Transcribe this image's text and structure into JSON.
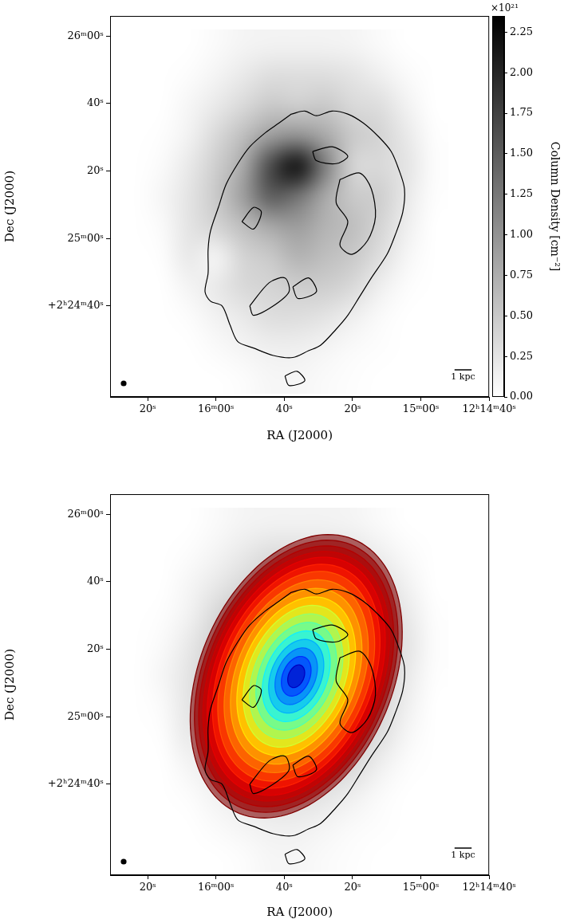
{
  "chart_data": [
    {
      "type": "image",
      "x_label": "RA (J2000)",
      "y_label": "Dec (J2000)",
      "xlim": [
        151,
        40
      ],
      "ylim": [
        13,
        126
      ],
      "xticks": [
        {
          "value": 140,
          "label": "20ˢ"
        },
        {
          "value": 120,
          "label": "16ᵐ00ˢ"
        },
        {
          "value": 100,
          "label": "40ˢ"
        },
        {
          "value": 80,
          "label": "20ˢ"
        },
        {
          "value": 60,
          "label": "15ᵐ00ˢ"
        },
        {
          "value": 40,
          "label": "12ʰ14ᵐ40ˢ"
        }
      ],
      "yticks": [
        {
          "value": 40,
          "label": "+2ʰ24ᵐ40ˢ"
        },
        {
          "value": 60,
          "label": "25ᵐ00ˢ"
        },
        {
          "value": 80,
          "label": "20ˢ"
        },
        {
          "value": 100,
          "label": "40ˢ"
        },
        {
          "value": 120,
          "label": "26ᵐ00ˢ"
        }
      ],
      "grid": false,
      "image": {
        "x": [
          144,
          136,
          128,
          120,
          112,
          104,
          96,
          88,
          80,
          72,
          64,
          56
        ],
        "y": [
          117.5,
          108.5,
          99.5,
          90.5,
          81.5,
          72.5,
          63.5,
          54.5,
          45.5,
          36.5,
          27.5,
          18.5
        ],
        "values": [
          [
            0,
            0,
            0,
            0.05,
            0.1,
            0.12,
            0.12,
            0.12,
            0.1,
            0.05,
            0,
            0
          ],
          [
            0,
            0,
            0.03,
            0.1,
            0.2,
            0.3,
            0.3,
            0.3,
            0.25,
            0.15,
            0.05,
            0
          ],
          [
            0,
            0,
            0.08,
            0.2,
            0.35,
            0.5,
            0.45,
            0.5,
            0.35,
            0.3,
            0.12,
            0
          ],
          [
            0,
            0.02,
            0.12,
            0.35,
            0.6,
            0.9,
            1.0,
            0.8,
            0.5,
            0.4,
            0.2,
            0.02
          ],
          [
            0,
            0.05,
            0.2,
            0.45,
            0.8,
            1.7,
            2.2,
            1.2,
            0.4,
            0.35,
            0.25,
            0.03
          ],
          [
            0,
            0.08,
            0.25,
            0.5,
            0.9,
            1.5,
            1.3,
            0.8,
            0.5,
            0.45,
            0.2,
            0.02
          ],
          [
            0,
            0.05,
            0.25,
            0.4,
            0.6,
            0.8,
            0.9,
            0.7,
            0.6,
            0.4,
            0.15,
            0
          ],
          [
            0,
            0.02,
            0.2,
            0.1,
            0.4,
            0.5,
            0.7,
            0.6,
            0.5,
            0.3,
            0.08,
            0
          ],
          [
            0,
            0,
            0.1,
            0.2,
            0.35,
            0.4,
            0.45,
            0.45,
            0.35,
            0.15,
            0.03,
            0
          ],
          [
            0,
            0,
            0.03,
            0.12,
            0.2,
            0.3,
            0.3,
            0.25,
            0.15,
            0.05,
            0,
            0
          ],
          [
            0,
            0,
            0,
            0.05,
            0.1,
            0.15,
            0.15,
            0.1,
            0.05,
            0.02,
            0,
            0
          ],
          [
            0,
            0,
            0,
            0,
            0.03,
            0.08,
            0.08,
            0.05,
            0.02,
            0,
            0,
            0
          ]
        ]
      },
      "colorbar": {
        "range": [
          0,
          2.35
        ],
        "ticks": [
          {
            "value": 0,
            "label": "0.00"
          },
          0.25,
          {
            "value": 0.5,
            "label": "0.50"
          },
          0.75,
          {
            "value": 1,
            "label": "1.00"
          },
          1.25,
          {
            "value": 1.5,
            "label": "1.50"
          },
          1.75,
          {
            "value": 2,
            "label": "2.00"
          },
          2.25
        ],
        "label": "Column Density [cm⁻²]",
        "multiplier": "×10²¹"
      },
      "contours": [
        [
          [
            97.9,
            96.9
          ],
          [
            94.0,
            97.8
          ],
          [
            90.6,
            96.4
          ],
          [
            86.0,
            97.8
          ],
          [
            81.4,
            96.9
          ],
          [
            76.8,
            94.2
          ],
          [
            72.2,
            90.0
          ],
          [
            68.7,
            85.8
          ],
          [
            66.4,
            80.3
          ],
          [
            64.8,
            74.7
          ],
          [
            65.3,
            67.8
          ],
          [
            67.6,
            60.8
          ],
          [
            69.9,
            55.3
          ],
          [
            74.5,
            48.3
          ],
          [
            77.9,
            42.8
          ],
          [
            81.4,
            37.2
          ],
          [
            84.8,
            33.1
          ],
          [
            89.4,
            28.3
          ],
          [
            92.9,
            26.7
          ],
          [
            97.5,
            24.7
          ],
          [
            103.2,
            25.3
          ],
          [
            109.0,
            27.5
          ],
          [
            113.6,
            29.4
          ],
          [
            115.9,
            34.4
          ],
          [
            118.2,
            40.0
          ],
          [
            121.6,
            41.4
          ],
          [
            123.2,
            44.2
          ],
          [
            122.3,
            49.7
          ],
          [
            122.3,
            56.7
          ],
          [
            121.6,
            62.2
          ],
          [
            119.3,
            69.2
          ],
          [
            117.0,
            76.1
          ],
          [
            113.6,
            82.2
          ],
          [
            110.1,
            87.2
          ],
          [
            105.5,
            91.4
          ],
          [
            101.6,
            94.2
          ]
        ],
        [
          [
            83.7,
            77.5
          ],
          [
            77.9,
            79.4
          ],
          [
            74.5,
            74.7
          ],
          [
            73.3,
            66.4
          ],
          [
            75.6,
            59.4
          ],
          [
            80.2,
            55.3
          ],
          [
            83.7,
            58.1
          ],
          [
            81.4,
            65.0
          ],
          [
            84.8,
            70.6
          ]
        ],
        [
          [
            110.1,
            40.0
          ],
          [
            104.4,
            46.9
          ],
          [
            99.8,
            48.3
          ],
          [
            98.6,
            44.2
          ],
          [
            103.2,
            40.0
          ],
          [
            109.0,
            37.2
          ]
        ],
        [
          [
            112.4,
            65.0
          ],
          [
            109.0,
            69.2
          ],
          [
            106.7,
            67.8
          ],
          [
            109.0,
            62.8
          ]
        ],
        [
          [
            97.5,
            45.6
          ],
          [
            92.9,
            48.3
          ],
          [
            90.6,
            44.2
          ],
          [
            96.0,
            42.2
          ]
        ],
        [
          [
            99.8,
            19.2
          ],
          [
            96.3,
            20.6
          ],
          [
            94.0,
            17.8
          ],
          [
            98.6,
            16.4
          ]
        ],
        [
          [
            91.7,
            85.8
          ],
          [
            86.0,
            87.2
          ],
          [
            81.4,
            84.4
          ],
          [
            84.8,
            82.2
          ],
          [
            90.6,
            83.1
          ]
        ]
      ],
      "scale_bar": {
        "label": "1 kpc",
        "length": 5
      },
      "beam": {
        "size": 1.7
      }
    },
    {
      "type": "image",
      "x_label": "RA (J2000)",
      "y_label": "Dec (J2000)",
      "xlim": [
        151,
        40
      ],
      "ylim": [
        13,
        126
      ],
      "xticks": [
        {
          "value": 140,
          "label": "20ˢ"
        },
        {
          "value": 120,
          "label": "16ᵐ00ˢ"
        },
        {
          "value": 100,
          "label": "40ˢ"
        },
        {
          "value": 80,
          "label": "20ˢ"
        },
        {
          "value": 60,
          "label": "15ᵐ00ˢ"
        },
        {
          "value": 40,
          "label": "12ʰ14ᵐ40ˢ"
        }
      ],
      "yticks": [
        {
          "value": 40,
          "label": "+2ʰ24ᵐ40ˢ"
        },
        {
          "value": 60,
          "label": "25ᵐ00ˢ"
        },
        {
          "value": 80,
          "label": "20ˢ"
        },
        {
          "value": 100,
          "label": "40ˢ"
        },
        {
          "value": 120,
          "label": "26ᵐ00ˢ"
        }
      ],
      "grid": false,
      "image": {
        "range": [
          0,
          2.35
        ],
        "x": [
          144,
          136,
          128,
          120,
          112,
          104,
          96,
          88,
          80,
          72,
          64,
          56
        ],
        "y": [
          117.5,
          108.5,
          99.5,
          90.5,
          81.5,
          72.5,
          63.5,
          54.5,
          45.5,
          36.5,
          27.5,
          18.5
        ],
        "values": [
          [
            0,
            0,
            0,
            0.05,
            0.1,
            0.12,
            0.12,
            0.12,
            0.1,
            0.05,
            0,
            0
          ],
          [
            0,
            0,
            0.03,
            0.1,
            0.2,
            0.3,
            0.3,
            0.3,
            0.25,
            0.15,
            0.05,
            0
          ],
          [
            0,
            0,
            0.08,
            0.2,
            0.35,
            0.5,
            0.45,
            0.5,
            0.35,
            0.3,
            0.12,
            0
          ],
          [
            0,
            0.02,
            0.12,
            0.35,
            0.6,
            0.9,
            1.0,
            0.8,
            0.5,
            0.4,
            0.2,
            0.02
          ],
          [
            0,
            0.05,
            0.2,
            0.45,
            0.8,
            1.7,
            2.2,
            1.2,
            0.4,
            0.35,
            0.25,
            0.03
          ],
          [
            0,
            0.08,
            0.25,
            0.5,
            0.9,
            1.5,
            1.3,
            0.8,
            0.5,
            0.45,
            0.2,
            0.02
          ],
          [
            0,
            0.05,
            0.25,
            0.4,
            0.6,
            0.8,
            0.9,
            0.7,
            0.6,
            0.4,
            0.15,
            0
          ],
          [
            0,
            0.02,
            0.2,
            0.1,
            0.4,
            0.5,
            0.7,
            0.6,
            0.5,
            0.3,
            0.08,
            0
          ],
          [
            0,
            0,
            0.1,
            0.2,
            0.35,
            0.4,
            0.45,
            0.45,
            0.35,
            0.15,
            0.03,
            0
          ],
          [
            0,
            0,
            0.03,
            0.12,
            0.2,
            0.3,
            0.3,
            0.25,
            0.15,
            0.05,
            0,
            0
          ],
          [
            0,
            0,
            0,
            0.05,
            0.1,
            0.15,
            0.15,
            0.1,
            0.05,
            0.02,
            0,
            0
          ],
          [
            0,
            0,
            0,
            0,
            0.03,
            0.08,
            0.08,
            0.05,
            0.02,
            0,
            0,
            0
          ]
        ]
      },
      "rings": {
        "center": [
          96.5,
          72
        ],
        "major_axis": [
          -21.7,
          37.6
        ],
        "minor_axis": [
          -22.2,
          -18.8
        ],
        "scales": [
          1,
          0.96,
          0.92,
          0.88,
          0.84,
          0.79,
          0.74,
          0.68,
          0.62,
          0.56,
          0.5,
          0.44,
          0.38,
          0.32,
          0.26,
          0.2,
          0.14,
          0.08
        ],
        "colors": [
          "#800000",
          "#990000",
          "#b30000",
          "#cc0000",
          "#e60000",
          "#ff2000",
          "#ff5000",
          "#ff8000",
          "#ffb000",
          "#ffe000",
          "#d0ff30",
          "#90ff70",
          "#50ffb0",
          "#10f0ff",
          "#00b0ff",
          "#0070ff",
          "#0030ff",
          "#0000c0"
        ]
      },
      "contours": [
        [
          [
            97.9,
            96.9
          ],
          [
            94.0,
            97.8
          ],
          [
            90.6,
            96.4
          ],
          [
            86.0,
            97.8
          ],
          [
            81.4,
            96.9
          ],
          [
            76.8,
            94.2
          ],
          [
            72.2,
            90.0
          ],
          [
            68.7,
            85.8
          ],
          [
            66.4,
            80.3
          ],
          [
            64.8,
            74.7
          ],
          [
            65.3,
            67.8
          ],
          [
            67.6,
            60.8
          ],
          [
            69.9,
            55.3
          ],
          [
            74.5,
            48.3
          ],
          [
            77.9,
            42.8
          ],
          [
            81.4,
            37.2
          ],
          [
            84.8,
            33.1
          ],
          [
            89.4,
            28.3
          ],
          [
            92.9,
            26.7
          ],
          [
            97.5,
            24.7
          ],
          [
            103.2,
            25.3
          ],
          [
            109.0,
            27.5
          ],
          [
            113.6,
            29.4
          ],
          [
            115.9,
            34.4
          ],
          [
            118.2,
            40.0
          ],
          [
            121.6,
            41.4
          ],
          [
            123.2,
            44.2
          ],
          [
            122.3,
            49.7
          ],
          [
            122.3,
            56.7
          ],
          [
            121.6,
            62.2
          ],
          [
            119.3,
            69.2
          ],
          [
            117.0,
            76.1
          ],
          [
            113.6,
            82.2
          ],
          [
            110.1,
            87.2
          ],
          [
            105.5,
            91.4
          ],
          [
            101.6,
            94.2
          ]
        ],
        [
          [
            83.7,
            77.5
          ],
          [
            77.9,
            79.4
          ],
          [
            74.5,
            74.7
          ],
          [
            73.3,
            66.4
          ],
          [
            75.6,
            59.4
          ],
          [
            80.2,
            55.3
          ],
          [
            83.7,
            58.1
          ],
          [
            81.4,
            65.0
          ],
          [
            84.8,
            70.6
          ]
        ],
        [
          [
            110.1,
            40.0
          ],
          [
            104.4,
            46.9
          ],
          [
            99.8,
            48.3
          ],
          [
            98.6,
            44.2
          ],
          [
            103.2,
            40.0
          ],
          [
            109.0,
            37.2
          ]
        ],
        [
          [
            112.4,
            65.0
          ],
          [
            109.0,
            69.2
          ],
          [
            106.7,
            67.8
          ],
          [
            109.0,
            62.8
          ]
        ],
        [
          [
            97.5,
            45.6
          ],
          [
            92.9,
            48.3
          ],
          [
            90.6,
            44.2
          ],
          [
            96.0,
            42.2
          ]
        ],
        [
          [
            99.8,
            19.2
          ],
          [
            96.3,
            20.6
          ],
          [
            94.0,
            17.8
          ],
          [
            98.6,
            16.4
          ]
        ],
        [
          [
            91.7,
            85.8
          ],
          [
            86.0,
            87.2
          ],
          [
            81.4,
            84.4
          ],
          [
            84.8,
            82.2
          ],
          [
            90.6,
            83.1
          ]
        ]
      ],
      "scale_bar": {
        "label": "1 kpc",
        "length": 5
      },
      "beam": {
        "size": 1.7
      }
    }
  ]
}
